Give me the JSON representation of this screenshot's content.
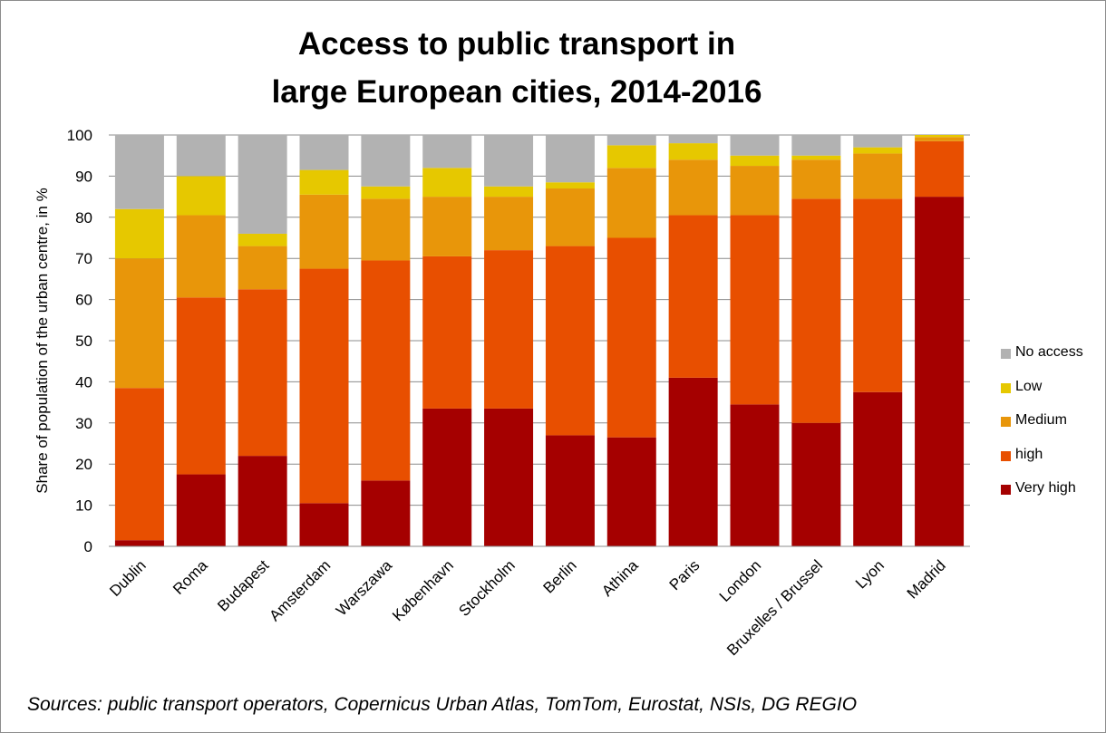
{
  "chart_data": {
    "type": "bar",
    "stacked": true,
    "title_lines": [
      "Access to public transport in",
      "large European cities, 2014-2016"
    ],
    "ylabel": "Share of population of the urban centre, in %",
    "xlabel": "",
    "ylim": [
      0,
      100
    ],
    "yticks": [
      0,
      10,
      20,
      30,
      40,
      50,
      60,
      70,
      80,
      90,
      100
    ],
    "grid": true,
    "legend_placement": "right",
    "categories": [
      "Dublin",
      "Roma",
      "Budapest",
      "Amsterdam",
      "Warszawa",
      "København",
      "Stockholm",
      "Berlin",
      "Athina",
      "Paris",
      "London",
      "Bruxelles / Brussel",
      "Lyon",
      "Madrid"
    ],
    "series": [
      {
        "name": "Very high",
        "color": "#a50000",
        "values": [
          1.5,
          17.5,
          22,
          10.5,
          16,
          33.5,
          33.5,
          27,
          26.5,
          41,
          34.5,
          30,
          37.5,
          85
        ]
      },
      {
        "name": "high",
        "color": "#e84f00",
        "values": [
          37,
          43,
          40.5,
          57,
          53.5,
          37,
          38.5,
          46,
          48.5,
          39.5,
          46,
          54.5,
          47,
          13.5
        ]
      },
      {
        "name": "Medium",
        "color": "#e8960a",
        "values": [
          31.5,
          20,
          10.5,
          18,
          15,
          14.5,
          13,
          14,
          17,
          13.5,
          12,
          9.5,
          11,
          1
        ]
      },
      {
        "name": "Low",
        "color": "#e6c800",
        "values": [
          12,
          9.5,
          3,
          6,
          3,
          7,
          2.5,
          1.5,
          5.5,
          4,
          2.5,
          1,
          1.5,
          0.5
        ]
      },
      {
        "name": "No access",
        "color": "#b2b2b2",
        "values": [
          18,
          10,
          24,
          8.5,
          12.5,
          8,
          12.5,
          11.5,
          2.5,
          2,
          5,
          5,
          3,
          0
        ]
      }
    ],
    "legend_order": [
      "No access",
      "Low",
      "Medium",
      "high",
      "Very high"
    ]
  },
  "source_note": "Sources: public transport operators, Copernicus  Urban Atlas, TomTom, Eurostat, NSIs, DG REGIO"
}
